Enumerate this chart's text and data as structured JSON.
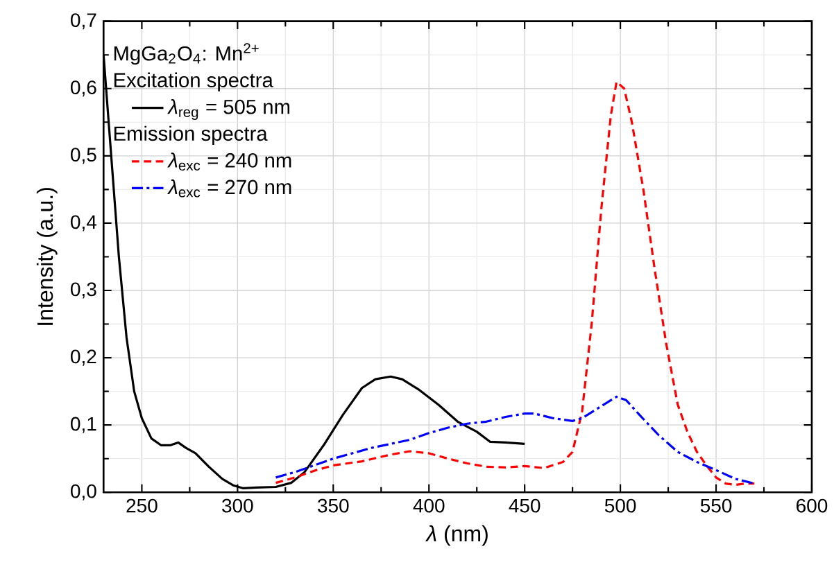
{
  "chart_data": {
    "type": "line",
    "xlabel": "*λ* (nm)",
    "ylabel": "Intensity (a.u.)",
    "legend_title": "MgGa$_{2}$O$_{4}$: Mn$^{2+}$",
    "annotations": [
      "Excitation spectra",
      "Emission spectra"
    ],
    "xlim": [
      230,
      600
    ],
    "xticks": [
      250,
      300,
      350,
      400,
      450,
      500,
      550,
      600
    ],
    "ylim": [
      0,
      0.7
    ],
    "yticks": [
      {
        "value": 0,
        "label": "0,0"
      },
      {
        "value": 0.1,
        "label": "0,1"
      },
      {
        "value": 0.2,
        "label": "0,2"
      },
      {
        "value": 0.3,
        "label": "0,3"
      },
      {
        "value": 0.4,
        "label": "0,4"
      },
      {
        "value": 0.5,
        "label": "0,5"
      },
      {
        "value": 0.6,
        "label": "0,6"
      },
      {
        "value": 0.7,
        "label": "0,7"
      }
    ],
    "grid": true,
    "legend": "top left",
    "marker": "none",
    "series": [
      {
        "name": "*λ*$_{reg}$ = 505 nm",
        "color": "#000000",
        "line_style": "solid",
        "x": [
          230,
          234,
          238,
          242,
          246,
          250,
          255,
          260,
          265,
          269,
          273,
          278,
          285,
          292,
          298,
          303,
          310,
          320,
          328,
          335,
          345,
          355,
          365,
          372,
          380,
          386,
          395,
          405,
          415,
          425,
          432,
          440,
          445,
          450
        ],
        "values": [
          0.65,
          0.5,
          0.35,
          0.23,
          0.15,
          0.11,
          0.08,
          0.07,
          0.07,
          0.074,
          0.066,
          0.058,
          0.038,
          0.02,
          0.01,
          0.006,
          0.007,
          0.008,
          0.014,
          0.03,
          0.07,
          0.115,
          0.155,
          0.168,
          0.172,
          0.168,
          0.152,
          0.13,
          0.105,
          0.09,
          0.075,
          0.074,
          0.073,
          0.072
        ]
      },
      {
        "name": "*λ*$_{exc}$ = 240 nm",
        "color": "#ff0000",
        "line_style": "dashed",
        "x": [
          320,
          330,
          340,
          350,
          365,
          380,
          390,
          400,
          410,
          420,
          430,
          440,
          450,
          460,
          470,
          475,
          480,
          485,
          490,
          495,
          498,
          502,
          506,
          512,
          518,
          524,
          530,
          535,
          540,
          545,
          550,
          555,
          560,
          565,
          570
        ],
        "values": [
          0.014,
          0.022,
          0.032,
          0.04,
          0.046,
          0.056,
          0.061,
          0.058,
          0.05,
          0.043,
          0.038,
          0.037,
          0.039,
          0.036,
          0.045,
          0.06,
          0.12,
          0.25,
          0.42,
          0.56,
          0.61,
          0.6,
          0.55,
          0.45,
          0.33,
          0.22,
          0.13,
          0.09,
          0.06,
          0.04,
          0.022,
          0.013,
          0.011,
          0.013,
          0.013
        ]
      },
      {
        "name": "*λ*$_{exc}$ = 270 nm",
        "color": "#0000ff",
        "line_style": "dashdot",
        "x": [
          320,
          330,
          340,
          350,
          360,
          370,
          380,
          390,
          400,
          410,
          420,
          430,
          440,
          450,
          455,
          465,
          475,
          480,
          490,
          498,
          503,
          510,
          520,
          530,
          540,
          550,
          560,
          570
        ],
        "values": [
          0.022,
          0.03,
          0.04,
          0.05,
          0.058,
          0.066,
          0.072,
          0.078,
          0.088,
          0.096,
          0.102,
          0.105,
          0.112,
          0.117,
          0.117,
          0.11,
          0.106,
          0.11,
          0.128,
          0.142,
          0.137,
          0.115,
          0.085,
          0.06,
          0.045,
          0.033,
          0.02,
          0.013
        ]
      }
    ]
  }
}
